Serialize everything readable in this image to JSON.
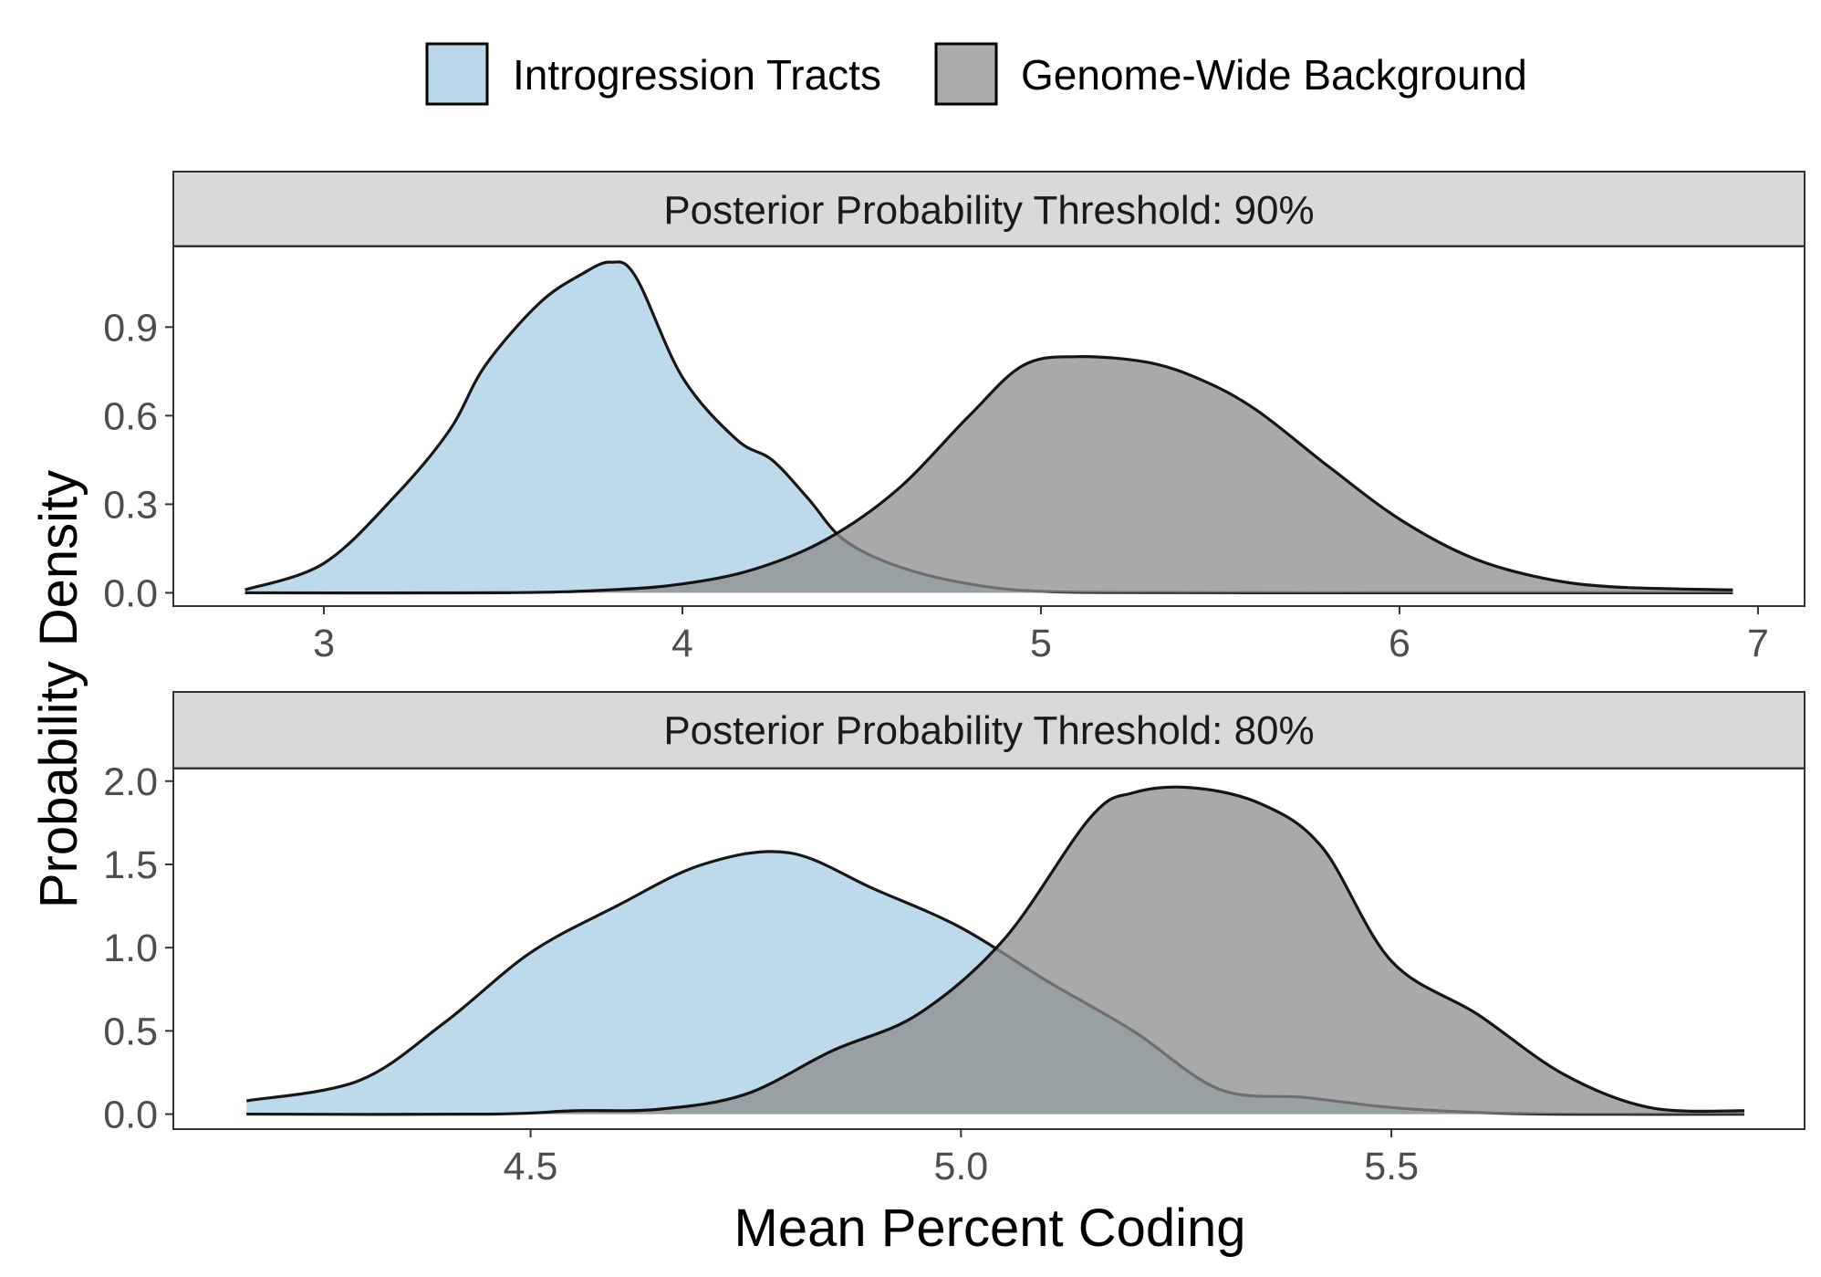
{
  "colors": {
    "introgression": "#a6cde3",
    "background": "#8c8c8c",
    "strip_fill": "#d9d9d9",
    "panel_border": "#333333"
  },
  "legend": {
    "items": [
      {
        "label": "Introgression Tracts",
        "color": "#b9d7e9"
      },
      {
        "label": "Genome-Wide Background",
        "color": "#ababab"
      }
    ],
    "placement": "top"
  },
  "axes": {
    "xlabel": "Mean Percent Coding",
    "ylabel": "Probability Density"
  },
  "chart_data": [
    {
      "type": "area",
      "title": "Posterior Probability Threshold: 90%",
      "xlim": [
        2.58,
        7.13
      ],
      "ylim": [
        -0.045,
        1.17
      ],
      "xticks": [
        3,
        4,
        5,
        6,
        7
      ],
      "xtick_labels": [
        "3",
        "4",
        "5",
        "6",
        "7"
      ],
      "yticks": [
        0,
        0.3,
        0.6,
        0.9
      ],
      "ytick_labels": [
        "0.0",
        "0.3",
        "0.6",
        "0.9"
      ],
      "series": [
        {
          "name": "Introgression Tracts",
          "x": [
            2.78,
            3.0,
            3.2,
            3.35,
            3.45,
            3.6,
            3.72,
            3.8,
            3.87,
            4.0,
            4.15,
            4.25,
            4.35,
            4.45,
            4.6,
            4.8,
            5.0,
            5.3,
            5.7,
            6.2,
            6.93
          ],
          "y": [
            0.01,
            0.1,
            0.33,
            0.55,
            0.77,
            0.98,
            1.08,
            1.12,
            1.07,
            0.73,
            0.52,
            0.45,
            0.32,
            0.18,
            0.09,
            0.03,
            0.005,
            0.001,
            0.0,
            0.0,
            0.0
          ]
        },
        {
          "name": "Genome-Wide Background",
          "x": [
            2.78,
            3.5,
            3.8,
            4.0,
            4.2,
            4.4,
            4.6,
            4.8,
            4.95,
            5.1,
            5.3,
            5.45,
            5.6,
            5.8,
            6.0,
            6.2,
            6.4,
            6.6,
            6.93
          ],
          "y": [
            0.0,
            0.0,
            0.01,
            0.03,
            0.08,
            0.18,
            0.35,
            0.6,
            0.77,
            0.8,
            0.78,
            0.72,
            0.62,
            0.43,
            0.25,
            0.12,
            0.05,
            0.02,
            0.01
          ]
        }
      ]
    },
    {
      "type": "area",
      "title": "Posterior Probability Threshold: 80%",
      "xlim": [
        4.085,
        5.98
      ],
      "ylim": [
        -0.09,
        2.07
      ],
      "xticks": [
        4.5,
        5.0,
        5.5
      ],
      "xtick_labels": [
        "4.5",
        "5.0",
        "5.5"
      ],
      "yticks": [
        0,
        0.5,
        1.0,
        1.5,
        2.0
      ],
      "ytick_labels": [
        "0.0",
        "0.5",
        "1.0",
        "1.5",
        "2.0"
      ],
      "series": [
        {
          "name": "Introgression Tracts",
          "x": [
            4.17,
            4.3,
            4.4,
            4.5,
            4.6,
            4.7,
            4.8,
            4.9,
            5.0,
            5.1,
            5.2,
            5.3,
            5.4,
            5.5,
            5.6,
            5.7,
            5.91
          ],
          "y": [
            0.08,
            0.2,
            0.55,
            0.97,
            1.25,
            1.5,
            1.57,
            1.35,
            1.12,
            0.8,
            0.5,
            0.15,
            0.1,
            0.04,
            0.01,
            0.0,
            0.0
          ]
        },
        {
          "name": "Genome-Wide Background",
          "x": [
            4.17,
            4.45,
            4.55,
            4.65,
            4.75,
            4.85,
            4.95,
            5.05,
            5.15,
            5.2,
            5.27,
            5.35,
            5.42,
            5.5,
            5.6,
            5.7,
            5.8,
            5.91
          ],
          "y": [
            0.0,
            0.0,
            0.02,
            0.03,
            0.12,
            0.38,
            0.6,
            1.05,
            1.78,
            1.93,
            1.96,
            1.86,
            1.6,
            0.92,
            0.6,
            0.24,
            0.04,
            0.02
          ]
        }
      ]
    }
  ]
}
